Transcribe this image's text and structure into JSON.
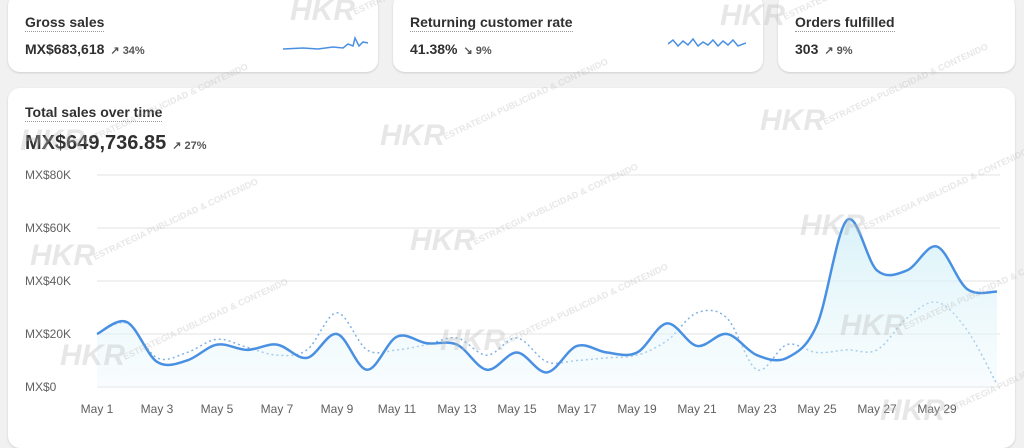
{
  "cards": [
    {
      "title": "Gross sales",
      "value": "MX$683,618",
      "delta": "34%"
    },
    {
      "title": "Returning customer rate",
      "value": "41.38%",
      "delta": "9%"
    },
    {
      "title": "Orders fulfilled",
      "value": "303",
      "delta": "9%"
    }
  ],
  "watermark": {
    "brand": "HKR",
    "tagline": "ESTRATEGIA PUBLICIDAD & CONTENIDO"
  },
  "chart_data": {
    "type": "line",
    "title": "Total sales over time",
    "total": "MX$649,736.85",
    "delta": "27%",
    "categories": [
      "May 1",
      null,
      "May 3",
      null,
      "May 5",
      null,
      "May 7",
      null,
      "May 9",
      null,
      "May 11",
      null,
      "May 13",
      null,
      "May 15",
      null,
      "May 17",
      null,
      "May 19",
      null,
      "May 21",
      null,
      "May 23",
      null,
      "May 25",
      null,
      "May 27",
      null,
      "May 29",
      null,
      null
    ],
    "ylim": [
      0,
      80000
    ],
    "yticks": [
      {
        "value": 0,
        "label": "MX$0"
      },
      {
        "value": 20000,
        "label": "MX$20K"
      },
      {
        "value": 40000,
        "label": "MX$40K"
      },
      {
        "value": 60000,
        "label": "MX$60K"
      },
      {
        "value": 80000,
        "label": "MX$80K"
      }
    ],
    "grid": true,
    "series": [
      {
        "color": "#4a90e2",
        "dashed": false,
        "values": [
          20000,
          24500,
          9500,
          10000,
          16000,
          14000,
          16000,
          11000,
          20000,
          6500,
          19000,
          16500,
          16000,
          6500,
          13000,
          5500,
          15500,
          13000,
          13000,
          24000,
          15500,
          20000,
          12000,
          11000,
          23500,
          63000,
          44000,
          44000,
          53000,
          37000,
          36000
        ]
      },
      {
        "color": "#7fb2e5",
        "dashed": true,
        "values": [
          20000,
          24000,
          11000,
          13000,
          18000,
          15000,
          12000,
          14000,
          28000,
          14000,
          14000,
          16000,
          18500,
          12000,
          18500,
          9500,
          10000,
          11000,
          12000,
          17500,
          28000,
          26000,
          6500,
          16000,
          13000,
          14000,
          14000,
          26000,
          32000,
          21500,
          1000
        ]
      }
    ]
  }
}
